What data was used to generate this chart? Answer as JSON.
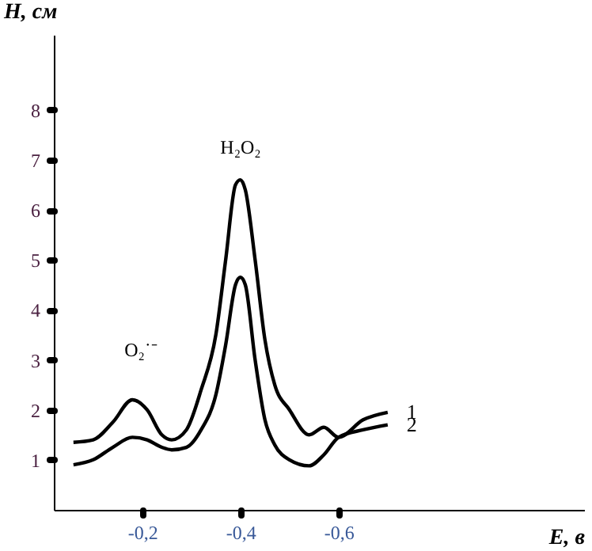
{
  "chart_data": {
    "type": "line",
    "xlabel": "E, в",
    "ylabel": "H, см",
    "xlim": [
      -0.02,
      -1.1
    ],
    "ylim": [
      0,
      9.5
    ],
    "xticks": [
      {
        "value": -0.2,
        "label": "-0,2"
      },
      {
        "value": -0.4,
        "label": "-0,4"
      },
      {
        "value": -0.6,
        "label": "-0,6"
      }
    ],
    "yticks": [
      1,
      2,
      3,
      4,
      5,
      6,
      7,
      8
    ],
    "grid": false,
    "legend": false,
    "marker": "none",
    "line_style": "solid",
    "x": [
      -0.06,
      -0.1,
      -0.14,
      -0.18,
      -0.21,
      -0.24,
      -0.26,
      -0.29,
      -0.32,
      -0.35,
      -0.37,
      -0.39,
      -0.4,
      -0.41,
      -0.43,
      -0.45,
      -0.47,
      -0.5,
      -0.54,
      -0.57,
      -0.6,
      -0.65,
      -0.7
    ],
    "series": [
      {
        "name": "1",
        "color": "#000000",
        "values": [
          1.35,
          1.4,
          1.75,
          2.2,
          2.0,
          1.5,
          1.4,
          1.6,
          2.4,
          3.5,
          5.0,
          6.5,
          6.6,
          6.4,
          5.0,
          3.4,
          2.5,
          2.0,
          1.5,
          1.65,
          1.45,
          1.8,
          1.95
        ]
      },
      {
        "name": "2",
        "color": "#000000",
        "values": [
          0.9,
          1.0,
          1.25,
          1.45,
          1.4,
          1.25,
          1.2,
          1.25,
          1.6,
          2.3,
          3.3,
          4.5,
          4.65,
          4.5,
          3.0,
          1.8,
          1.3,
          1.0,
          0.88,
          1.1,
          1.45,
          1.6,
          1.7
        ]
      }
    ],
    "annotations": [
      "H₂O₂",
      "O₂˙⁻"
    ]
  }
}
